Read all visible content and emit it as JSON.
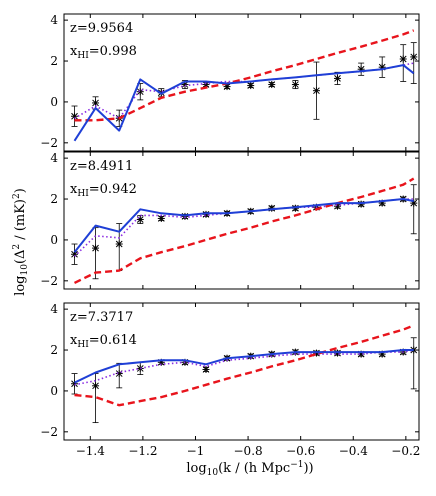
{
  "chart_data": {
    "type": "line",
    "xlabel": {
      "prefix": "log",
      "sub": "10",
      "main": "(k / (h Mpc",
      "sup": "−1",
      "suffix": "))"
    },
    "ylabel": {
      "prefix": "log",
      "sub": "10",
      "main": "(Δ",
      "sup": "2",
      "mid": " / (mK)",
      "sup2": "2",
      "suffix": ")"
    },
    "xlim": [
      -1.5,
      -0.15
    ],
    "ylim": [
      -2.4,
      4.3
    ],
    "x_ticks": [
      -1.4,
      -1.2,
      -1,
      -0.8,
      -0.6,
      -0.4,
      -0.2
    ],
    "x_tick_labels": [
      "−1.4",
      "−1.2",
      "−1",
      "−0.8",
      "−0.6",
      "−0.4",
      "−0.2"
    ],
    "y_ticks": [
      -2,
      0,
      2,
      4
    ],
    "y_tick_labels": [
      "−2",
      "0",
      "2",
      "4"
    ],
    "series_styles": {
      "solid": {
        "color": "#1f3fd6"
      },
      "dotted": {
        "color": "#8a2be2"
      },
      "dashed": {
        "color": "#e8141c"
      },
      "errorbar": {
        "color": "#000000"
      }
    },
    "panels": [
      {
        "z_label": "z=9.9564",
        "xhi_label": {
          "main": "x",
          "sub": "HI",
          "value": "=0.998"
        },
        "x": [
          -1.46,
          -1.38,
          -1.29,
          -1.21,
          -1.13,
          -1.04,
          -0.96,
          -0.88,
          -0.79,
          -0.71,
          -0.62,
          -0.54,
          -0.46,
          -0.37,
          -0.29,
          -0.21,
          -0.17
        ],
        "solid": [
          -1.9,
          -0.3,
          -1.4,
          1.1,
          0.4,
          1.0,
          1.0,
          0.9,
          1.0,
          1.1,
          1.2,
          1.3,
          1.4,
          1.5,
          1.6,
          1.8,
          1.4
        ],
        "dotted": [
          -0.8,
          -0.2,
          -0.8,
          0.6,
          0.5,
          0.8,
          0.9,
          1.0,
          1.0,
          1.1,
          1.2,
          1.3,
          1.4,
          1.5,
          1.6,
          1.8,
          1.9
        ],
        "dashed": [
          -0.9,
          -0.9,
          -0.8,
          -0.3,
          0.2,
          0.5,
          0.7,
          0.9,
          1.2,
          1.5,
          1.8,
          2.1,
          2.4,
          2.7,
          3.0,
          3.3,
          3.5
        ],
        "points": [
          -0.7,
          -0.05,
          -0.8,
          0.5,
          0.45,
          0.85,
          0.85,
          0.75,
          0.8,
          0.85,
          0.85,
          0.55,
          1.15,
          1.6,
          1.7,
          2.1,
          2.2
        ],
        "err_low": [
          0.5,
          0.3,
          0.4,
          0.4,
          0.2,
          0.2,
          0.1,
          0.1,
          0.1,
          0.1,
          0.2,
          1.4,
          0.3,
          0.3,
          0.5,
          1.1,
          1.3
        ],
        "err_high": [
          0.5,
          0.3,
          0.4,
          0.4,
          0.2,
          0.2,
          0.1,
          0.1,
          0.1,
          0.1,
          0.2,
          1.4,
          0.3,
          0.3,
          0.5,
          0.7,
          0.7
        ]
      },
      {
        "z_label": "z=8.4911",
        "xhi_label": {
          "main": "x",
          "sub": "HI",
          "value": "=0.942"
        },
        "x": [
          -1.46,
          -1.38,
          -1.29,
          -1.21,
          -1.13,
          -1.04,
          -0.96,
          -0.88,
          -0.79,
          -0.71,
          -0.62,
          -0.54,
          -0.46,
          -0.37,
          -0.29,
          -0.21,
          -0.17
        ],
        "solid": [
          -0.6,
          0.7,
          0.4,
          1.5,
          1.3,
          1.2,
          1.3,
          1.3,
          1.4,
          1.5,
          1.6,
          1.7,
          1.8,
          1.8,
          1.9,
          2.0,
          1.9
        ],
        "dotted": [
          -0.8,
          0.2,
          0.1,
          1.2,
          1.2,
          1.1,
          1.2,
          1.3,
          1.4,
          1.5,
          1.6,
          1.6,
          1.7,
          1.8,
          1.9,
          2.0,
          2.0
        ],
        "dashed": [
          -2.1,
          -1.6,
          -1.5,
          -0.9,
          -0.6,
          -0.3,
          0.0,
          0.3,
          0.6,
          0.9,
          1.2,
          1.5,
          1.8,
          2.1,
          2.4,
          2.7,
          3.0
        ],
        "points": [
          -0.7,
          -0.4,
          -0.2,
          1.0,
          1.05,
          1.15,
          1.25,
          1.3,
          1.4,
          1.55,
          1.55,
          1.6,
          1.65,
          1.75,
          1.8,
          2.0,
          1.8
        ],
        "err_low": [
          0.5,
          1.5,
          1.3,
          0.2,
          0.1,
          0.1,
          0.1,
          0.1,
          0.1,
          0.1,
          0.1,
          0.1,
          0.1,
          0.1,
          0.1,
          0.1,
          1.5
        ],
        "err_high": [
          0.5,
          1.0,
          1.0,
          0.2,
          0.1,
          0.1,
          0.1,
          0.1,
          0.1,
          0.1,
          0.1,
          0.1,
          0.1,
          0.1,
          0.1,
          0.1,
          0.9
        ]
      },
      {
        "z_label": "z=7.3717",
        "xhi_label": {
          "main": "x",
          "sub": "HI",
          "value": "=0.614"
        },
        "x": [
          -1.46,
          -1.38,
          -1.29,
          -1.21,
          -1.13,
          -1.04,
          -0.96,
          -0.88,
          -0.79,
          -0.71,
          -0.62,
          -0.54,
          -0.46,
          -0.37,
          -0.29,
          -0.21,
          -0.17
        ],
        "solid": [
          0.4,
          0.9,
          1.3,
          1.4,
          1.5,
          1.5,
          1.3,
          1.6,
          1.7,
          1.8,
          1.9,
          1.9,
          1.9,
          1.9,
          1.9,
          2.0,
          2.0
        ],
        "dotted": [
          0.3,
          0.5,
          0.9,
          1.1,
          1.3,
          1.4,
          1.2,
          1.5,
          1.6,
          1.7,
          1.8,
          1.8,
          1.8,
          1.8,
          1.9,
          1.9,
          2.0
        ],
        "dashed": [
          -0.2,
          -0.3,
          -0.7,
          -0.5,
          -0.3,
          0.0,
          0.3,
          0.6,
          0.9,
          1.2,
          1.5,
          1.8,
          2.1,
          2.4,
          2.7,
          3.0,
          3.2
        ],
        "points": [
          0.35,
          0.25,
          0.85,
          1.1,
          1.4,
          1.4,
          1.05,
          1.6,
          1.7,
          1.8,
          1.9,
          1.85,
          1.85,
          1.8,
          1.8,
          1.9,
          2.0
        ],
        "err_low": [
          0.5,
          1.8,
          0.7,
          0.3,
          0.1,
          0.1,
          0.1,
          0.1,
          0.1,
          0.1,
          0.1,
          0.1,
          0.1,
          0.1,
          0.1,
          0.1,
          1.9
        ],
        "err_high": [
          0.5,
          0.6,
          0.5,
          0.3,
          0.1,
          0.1,
          0.1,
          0.1,
          0.1,
          0.1,
          0.1,
          0.1,
          0.1,
          0.1,
          0.1,
          0.1,
          0.6
        ]
      }
    ]
  }
}
